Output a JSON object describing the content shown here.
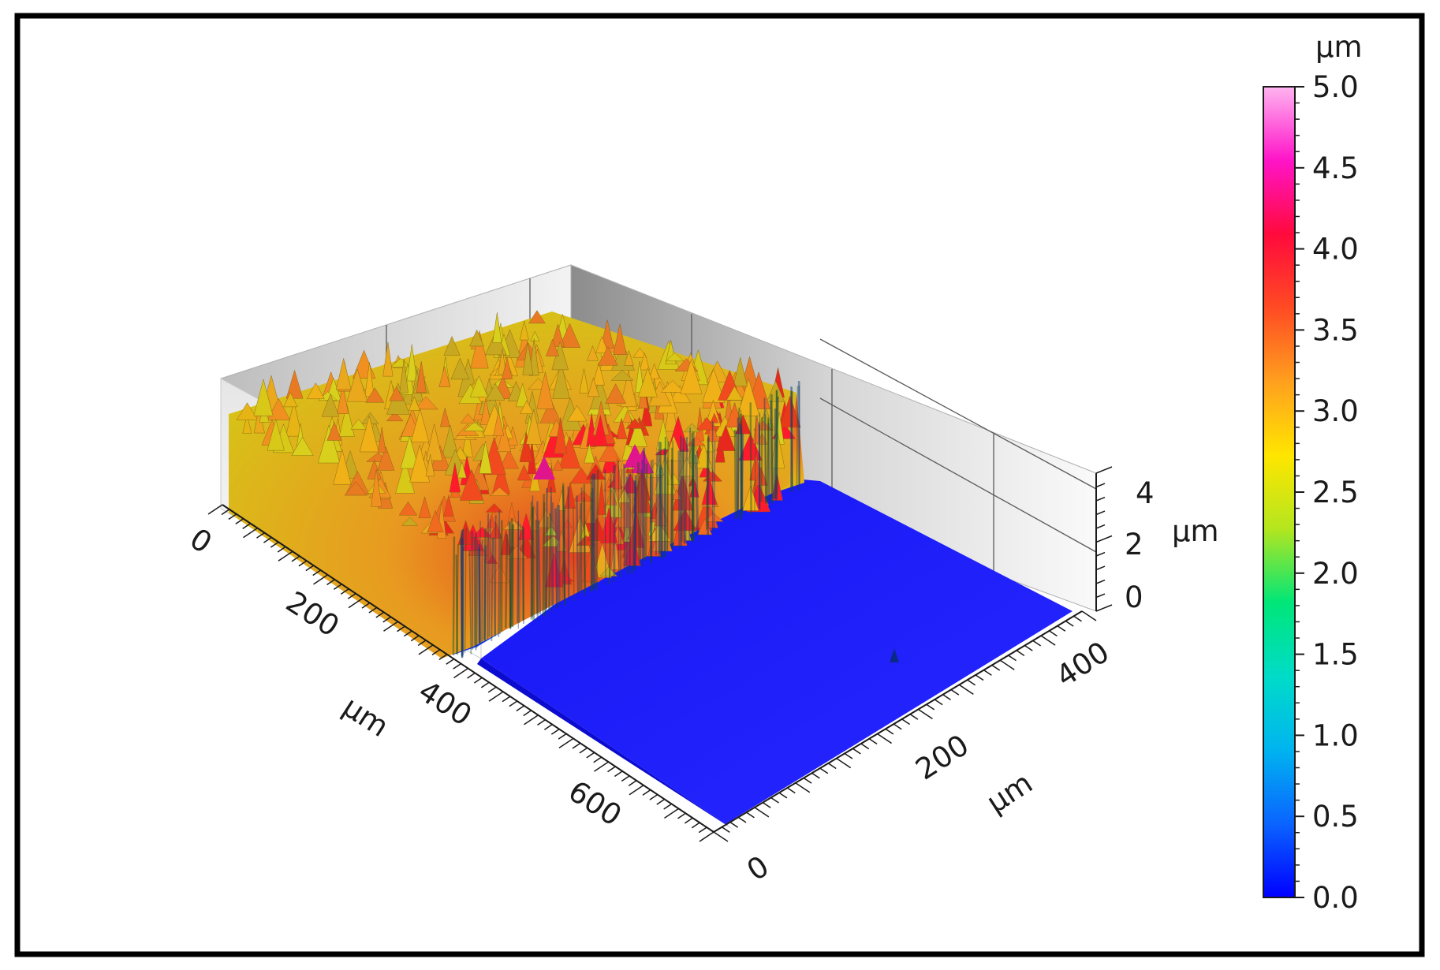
{
  "chart_data": {
    "type": "surface-3d",
    "z_unit": "µm",
    "x_axis": {
      "label": "µm",
      "ticks": [
        "0",
        "200",
        "400",
        "600"
      ],
      "range": [
        0,
        700
      ]
    },
    "y_axis": {
      "label": "µm",
      "ticks": [
        "0",
        "200",
        "400"
      ],
      "range": [
        0,
        450
      ]
    },
    "z_axis": {
      "label": "µm",
      "ticks": [
        "0",
        "2",
        "4"
      ],
      "range": [
        0,
        5
      ]
    },
    "surface": {
      "description_regions": [
        {
          "region": "x 0–320 µm",
          "height_um_mean": 3.0,
          "height_um_max": 4.8
        },
        {
          "region": "x 320–700 µm",
          "height_um_mean": 0.0
        }
      ],
      "step_edge_x_um": 320
    },
    "colorbar": {
      "unit": "µm",
      "range": [
        0.0,
        5.0
      ],
      "ticks": [
        "0.0",
        "0.5",
        "1.0",
        "1.5",
        "2.0",
        "2.5",
        "3.0",
        "3.5",
        "4.0",
        "4.5",
        "5.0"
      ],
      "colors": [
        "#0000ff",
        "#0a64ff",
        "#00b4f0",
        "#00dcc8",
        "#00e678",
        "#b4e61e",
        "#ffe600",
        "#ffa01e",
        "#ff4b23",
        "#ff0a3c",
        "#ff14c8",
        "#ffb4f0"
      ]
    }
  }
}
